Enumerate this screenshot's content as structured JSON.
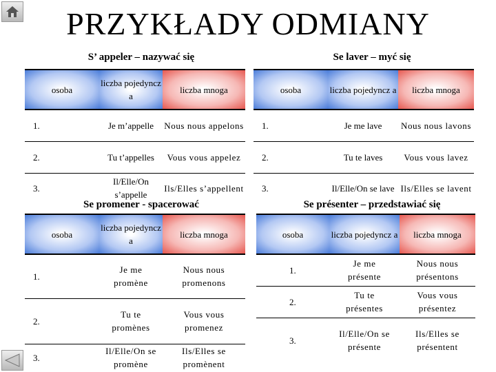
{
  "page": {
    "title": "PRZYKŁADY ODMIANY",
    "icons": {
      "home": "home-icon",
      "back": "back-arrow-icon"
    }
  },
  "colors": {
    "blue_header": "#4a7cd9",
    "red_header": "#e6574f"
  },
  "table_headers": {
    "person": "osoba",
    "singular": "liczba pojedyncz a",
    "plural": "liczba mnoga"
  },
  "tables": {
    "appeler": {
      "subtitle": "S’ appeler – nazywać się",
      "rows": [
        {
          "person": "1.",
          "singular": "Je m’appelle",
          "plural": "Nous nous appelons"
        },
        {
          "person": "2.",
          "singular": "Tu t’appelles",
          "plural": "Vous vous appelez"
        },
        {
          "person": "3.",
          "singular": "Il/Elle/On s’appelle",
          "plural": "Ils/Elles s’appellent"
        }
      ]
    },
    "laver": {
      "subtitle": "Se laver – myć się",
      "rows": [
        {
          "person": "1.",
          "singular": "Je me lave",
          "plural": "Nous nous lavons"
        },
        {
          "person": "2.",
          "singular": "Tu te laves",
          "plural": "Vous vous lavez"
        },
        {
          "person": "3.",
          "singular": "Il/Elle/On se lave",
          "plural": "Ils/Elles se lavent"
        }
      ]
    },
    "promener": {
      "subtitle": "Se promener - spacerować",
      "rows": [
        {
          "person": "1.",
          "singular": "Je me promène",
          "plural": "Nous nous promenons"
        },
        {
          "person": "2.",
          "singular": "Tu te promènes",
          "plural": "Vous vous promenez"
        },
        {
          "person": "3.",
          "singular": "Il/Elle/On se promène",
          "plural": "Ils/Elles se promènent"
        }
      ]
    },
    "presenter": {
      "subtitle": "Se présenter – przedstawiać się",
      "rows": [
        {
          "person": "1.",
          "singular": "Je me présente",
          "plural": "Nous nous présentons"
        },
        {
          "person": "2.",
          "singular": "Tu te présentes",
          "plural": "Vous vous présentez"
        },
        {
          "person": "3.",
          "singular": "Il/Elle/On se présente",
          "plural": "Ils/Elles se présentent"
        }
      ]
    }
  }
}
